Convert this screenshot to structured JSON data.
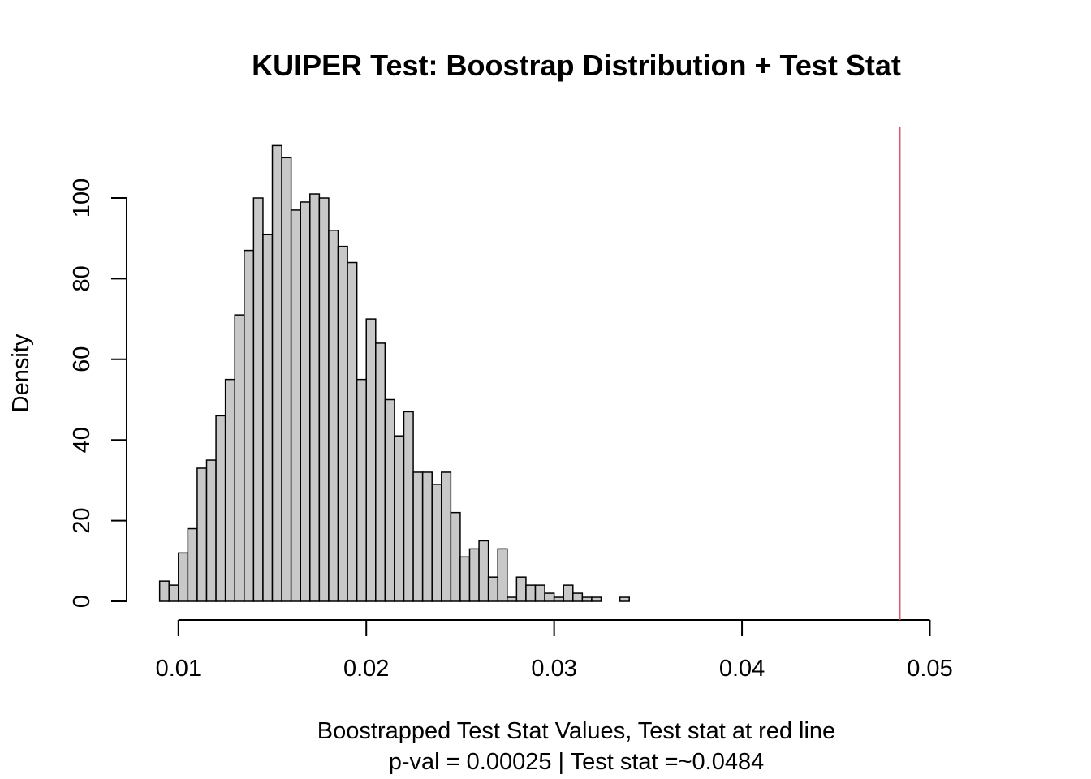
{
  "chart_data": {
    "type": "bar",
    "title": "KUIPER Test: Boostrap Distribution + Test Stat",
    "xlabel": "Boostrapped Test Stat Values, Test stat at red line",
    "subtitle": "p-val = 0.00025 | Test stat =~0.0484",
    "ylabel": "Density",
    "xlim": [
      0.0072,
      0.0508
    ],
    "ylim": [
      0,
      118
    ],
    "x_ticks": [
      "0.01",
      "0.02",
      "0.03",
      "0.04",
      "0.05"
    ],
    "y_ticks": [
      "0",
      "20",
      "40",
      "60",
      "80",
      "100"
    ],
    "bin_start": 0.009,
    "bin_width": 0.0005,
    "values": [
      5,
      4,
      12,
      18,
      33,
      35,
      46,
      55,
      71,
      87,
      100,
      91,
      113,
      110,
      97,
      99,
      101,
      100,
      92,
      88,
      84,
      55,
      70,
      64,
      50,
      41,
      47,
      32,
      32,
      29,
      32,
      22,
      11,
      13,
      15,
      6,
      13,
      1,
      6,
      4,
      4,
      2,
      1,
      4,
      2,
      1,
      1,
      0,
      0,
      1
    ],
    "test_stat": 0.0484,
    "bar_color": "#c8c8c8",
    "line_color": "#df536b",
    "grid": false,
    "legend": "none"
  }
}
